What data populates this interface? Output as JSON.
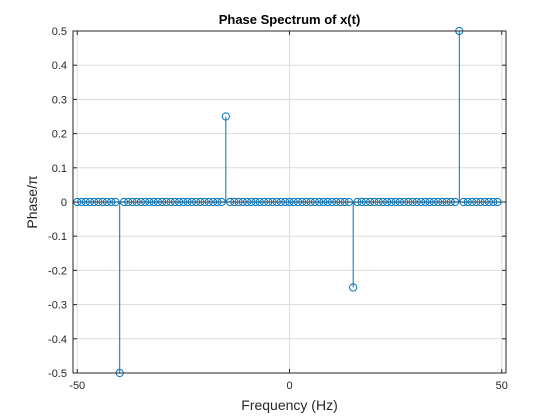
{
  "chart_data": {
    "type": "stem",
    "title": "Phase Spectrum of x(t)",
    "xlabel": "Frequency (Hz)",
    "ylabel": "Phase/π",
    "xlim": [
      -51,
      51
    ],
    "ylim": [
      -0.5,
      0.5
    ],
    "xticks": [
      -50,
      0,
      50
    ],
    "yticks": [
      -0.5,
      -0.4,
      -0.3,
      -0.2,
      -0.1,
      0,
      0.1,
      0.2,
      0.3,
      0.4,
      0.5
    ],
    "grid": true,
    "series": [
      {
        "x_start": -50,
        "x_end": 49,
        "x_step": 1,
        "default_y": 0,
        "nonzero": [
          {
            "x": -40,
            "y": -0.5
          },
          {
            "x": -15,
            "y": 0.25
          },
          {
            "x": 15,
            "y": -0.25
          },
          {
            "x": 40,
            "y": 0.5
          }
        ],
        "color": "#0072bd"
      }
    ]
  }
}
